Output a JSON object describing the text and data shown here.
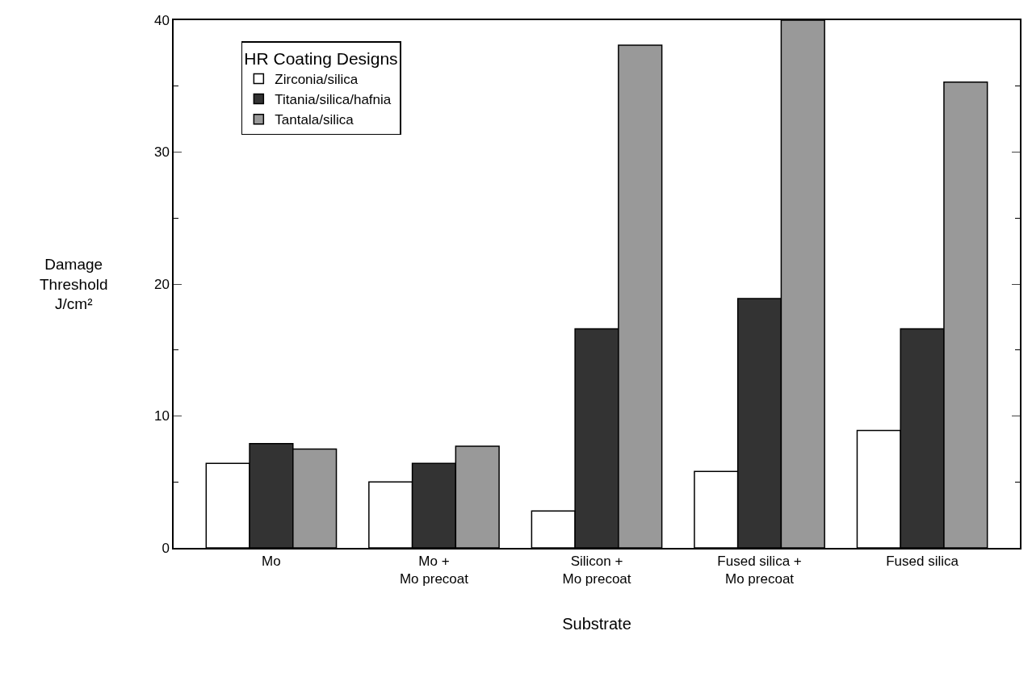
{
  "chart_data": {
    "type": "bar",
    "xlabel": "Substrate",
    "ylabel": "Damage\nThreshold\nJ/cm²",
    "legend_title": "HR Coating Designs",
    "legend": "top left",
    "categories": [
      "Mo",
      "Mo +\nMo precoat",
      "Silicon +\nMo precoat",
      "Fused silica +\nMo precoat",
      "Fused silica"
    ],
    "series": [
      {
        "name": "Zirconia/silica",
        "color": "#ffffff",
        "values": [
          6.4,
          5.0,
          2.8,
          5.8,
          8.9
        ]
      },
      {
        "name": "Titania/silica/hafnia",
        "color": "#333333",
        "values": [
          7.9,
          6.4,
          16.6,
          18.9,
          16.6
        ]
      },
      {
        "name": "Tantala/silica",
        "color": "#999999",
        "values": [
          7.5,
          7.7,
          38.1,
          40,
          35.3
        ]
      }
    ],
    "ylim": [
      0,
      40
    ],
    "yticks": [
      0,
      10,
      20,
      30,
      40
    ]
  }
}
